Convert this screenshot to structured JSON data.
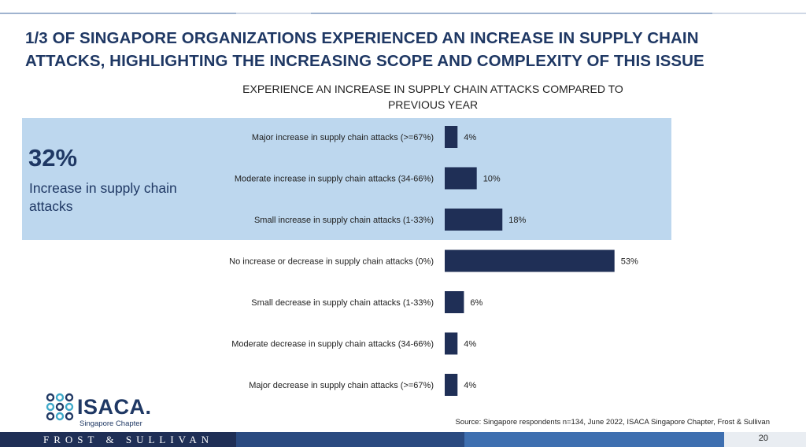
{
  "title": "1/3 OF SINGAPORE ORGANIZATIONS EXPERIENCED AN INCREASE IN SUPPLY CHAIN ATTACKS, HIGHLIGHTING THE INCREASING SCOPE AND COMPLEXITY OF THIS ISSUE",
  "highlight": {
    "percent": "32%",
    "text": "Increase in supply chain attacks"
  },
  "source": "Source: Singapore respondents n=134, June 2022, ISACA Singapore Chapter, Frost & Sullivan",
  "logo": {
    "name": "ISACA.",
    "sub": "Singapore Chapter"
  },
  "footer": {
    "brand": "FROST & SULLIVAN",
    "page": "20"
  },
  "colors": {
    "bar": "#1f2f56",
    "highlight": "#bdd7ee",
    "title": "#1f3864"
  },
  "chart_data": {
    "type": "bar",
    "orientation": "horizontal",
    "title": "EXPERIENCE AN INCREASE IN SUPPLY CHAIN ATTACKS COMPARED TO PREVIOUS YEAR",
    "categories": [
      "Major increase in supply chain attacks (>=67%)",
      "Moderate increase in supply chain attacks (34-66%)",
      "Small increase in supply chain attacks (1-33%)",
      "No increase or decrease in supply chain attacks (0%)",
      "Small decrease in supply chain attacks (1-33%)",
      "Moderate decrease in supply chain attacks (34-66%)",
      "Major decrease in supply chain attacks  (>=67%)"
    ],
    "values": [
      4,
      10,
      18,
      53,
      6,
      4,
      4
    ],
    "value_labels": [
      "4%",
      "10%",
      "18%",
      "53%",
      "6%",
      "4%",
      "4%"
    ],
    "xlim": [
      0,
      100
    ],
    "grid": false
  }
}
